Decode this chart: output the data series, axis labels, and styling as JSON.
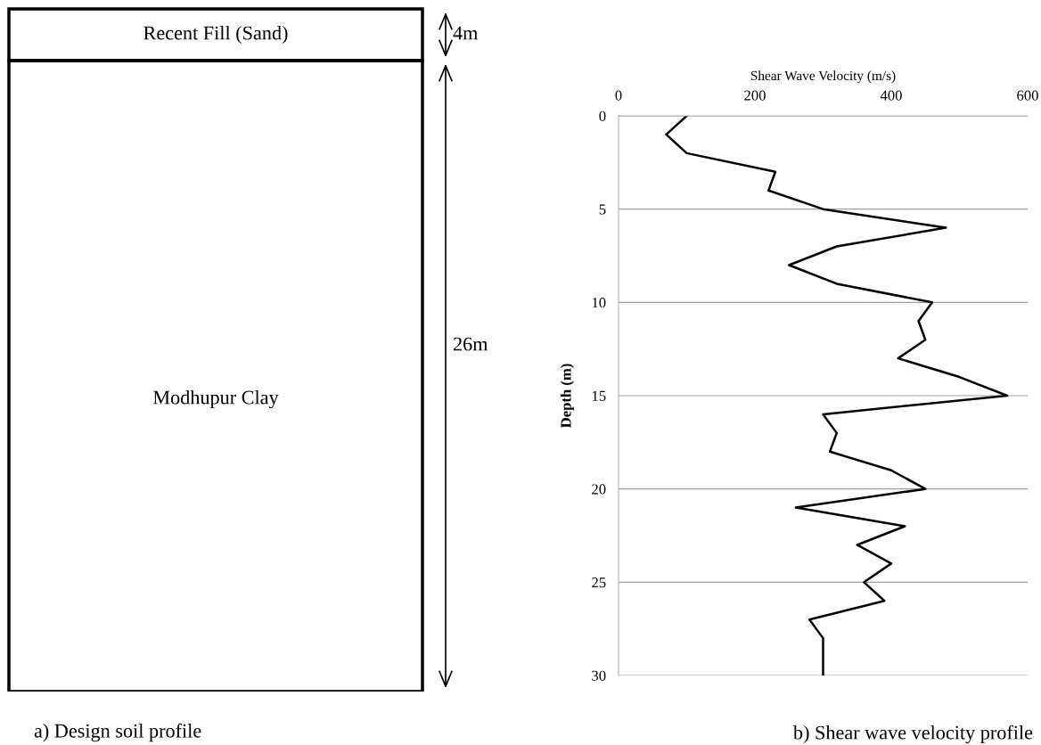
{
  "chart_data": [
    {
      "type": "other",
      "title": "a) Design soil profile",
      "annotations": [
        "Recent Fill (Sand)",
        "4m",
        "Modhupur Clay",
        "26m"
      ]
    },
    {
      "type": "line",
      "title": "b) Shear wave velocity profile",
      "xlabel": "Shear Wave Velocity (m/s)",
      "ylabel": "Depth (m)",
      "orientation": "horizontal",
      "x": [
        0,
        1,
        2,
        3,
        4,
        5,
        6,
        7,
        8,
        9,
        10,
        11,
        12,
        13,
        14,
        15,
        16,
        17,
        18,
        19,
        20,
        21,
        22,
        23,
        24,
        25,
        26,
        27,
        28,
        29,
        30
      ],
      "series": [
        {
          "color": "#000000",
          "values": [
            100,
            70,
            100,
            230,
            220,
            300,
            480,
            320,
            250,
            320,
            460,
            440,
            450,
            410,
            500,
            570,
            300,
            320,
            310,
            400,
            450,
            260,
            420,
            350,
            400,
            360,
            390,
            280,
            300,
            300,
            300
          ]
        }
      ],
      "xlim": [
        0,
        600
      ],
      "xticks": [
        0,
        200,
        400,
        600
      ],
      "ylim": [
        30,
        0
      ],
      "yticks": [
        0,
        5,
        10,
        15,
        20,
        25,
        30
      ],
      "grid": "y",
      "marker": "none",
      "line_style": "solid"
    }
  ]
}
